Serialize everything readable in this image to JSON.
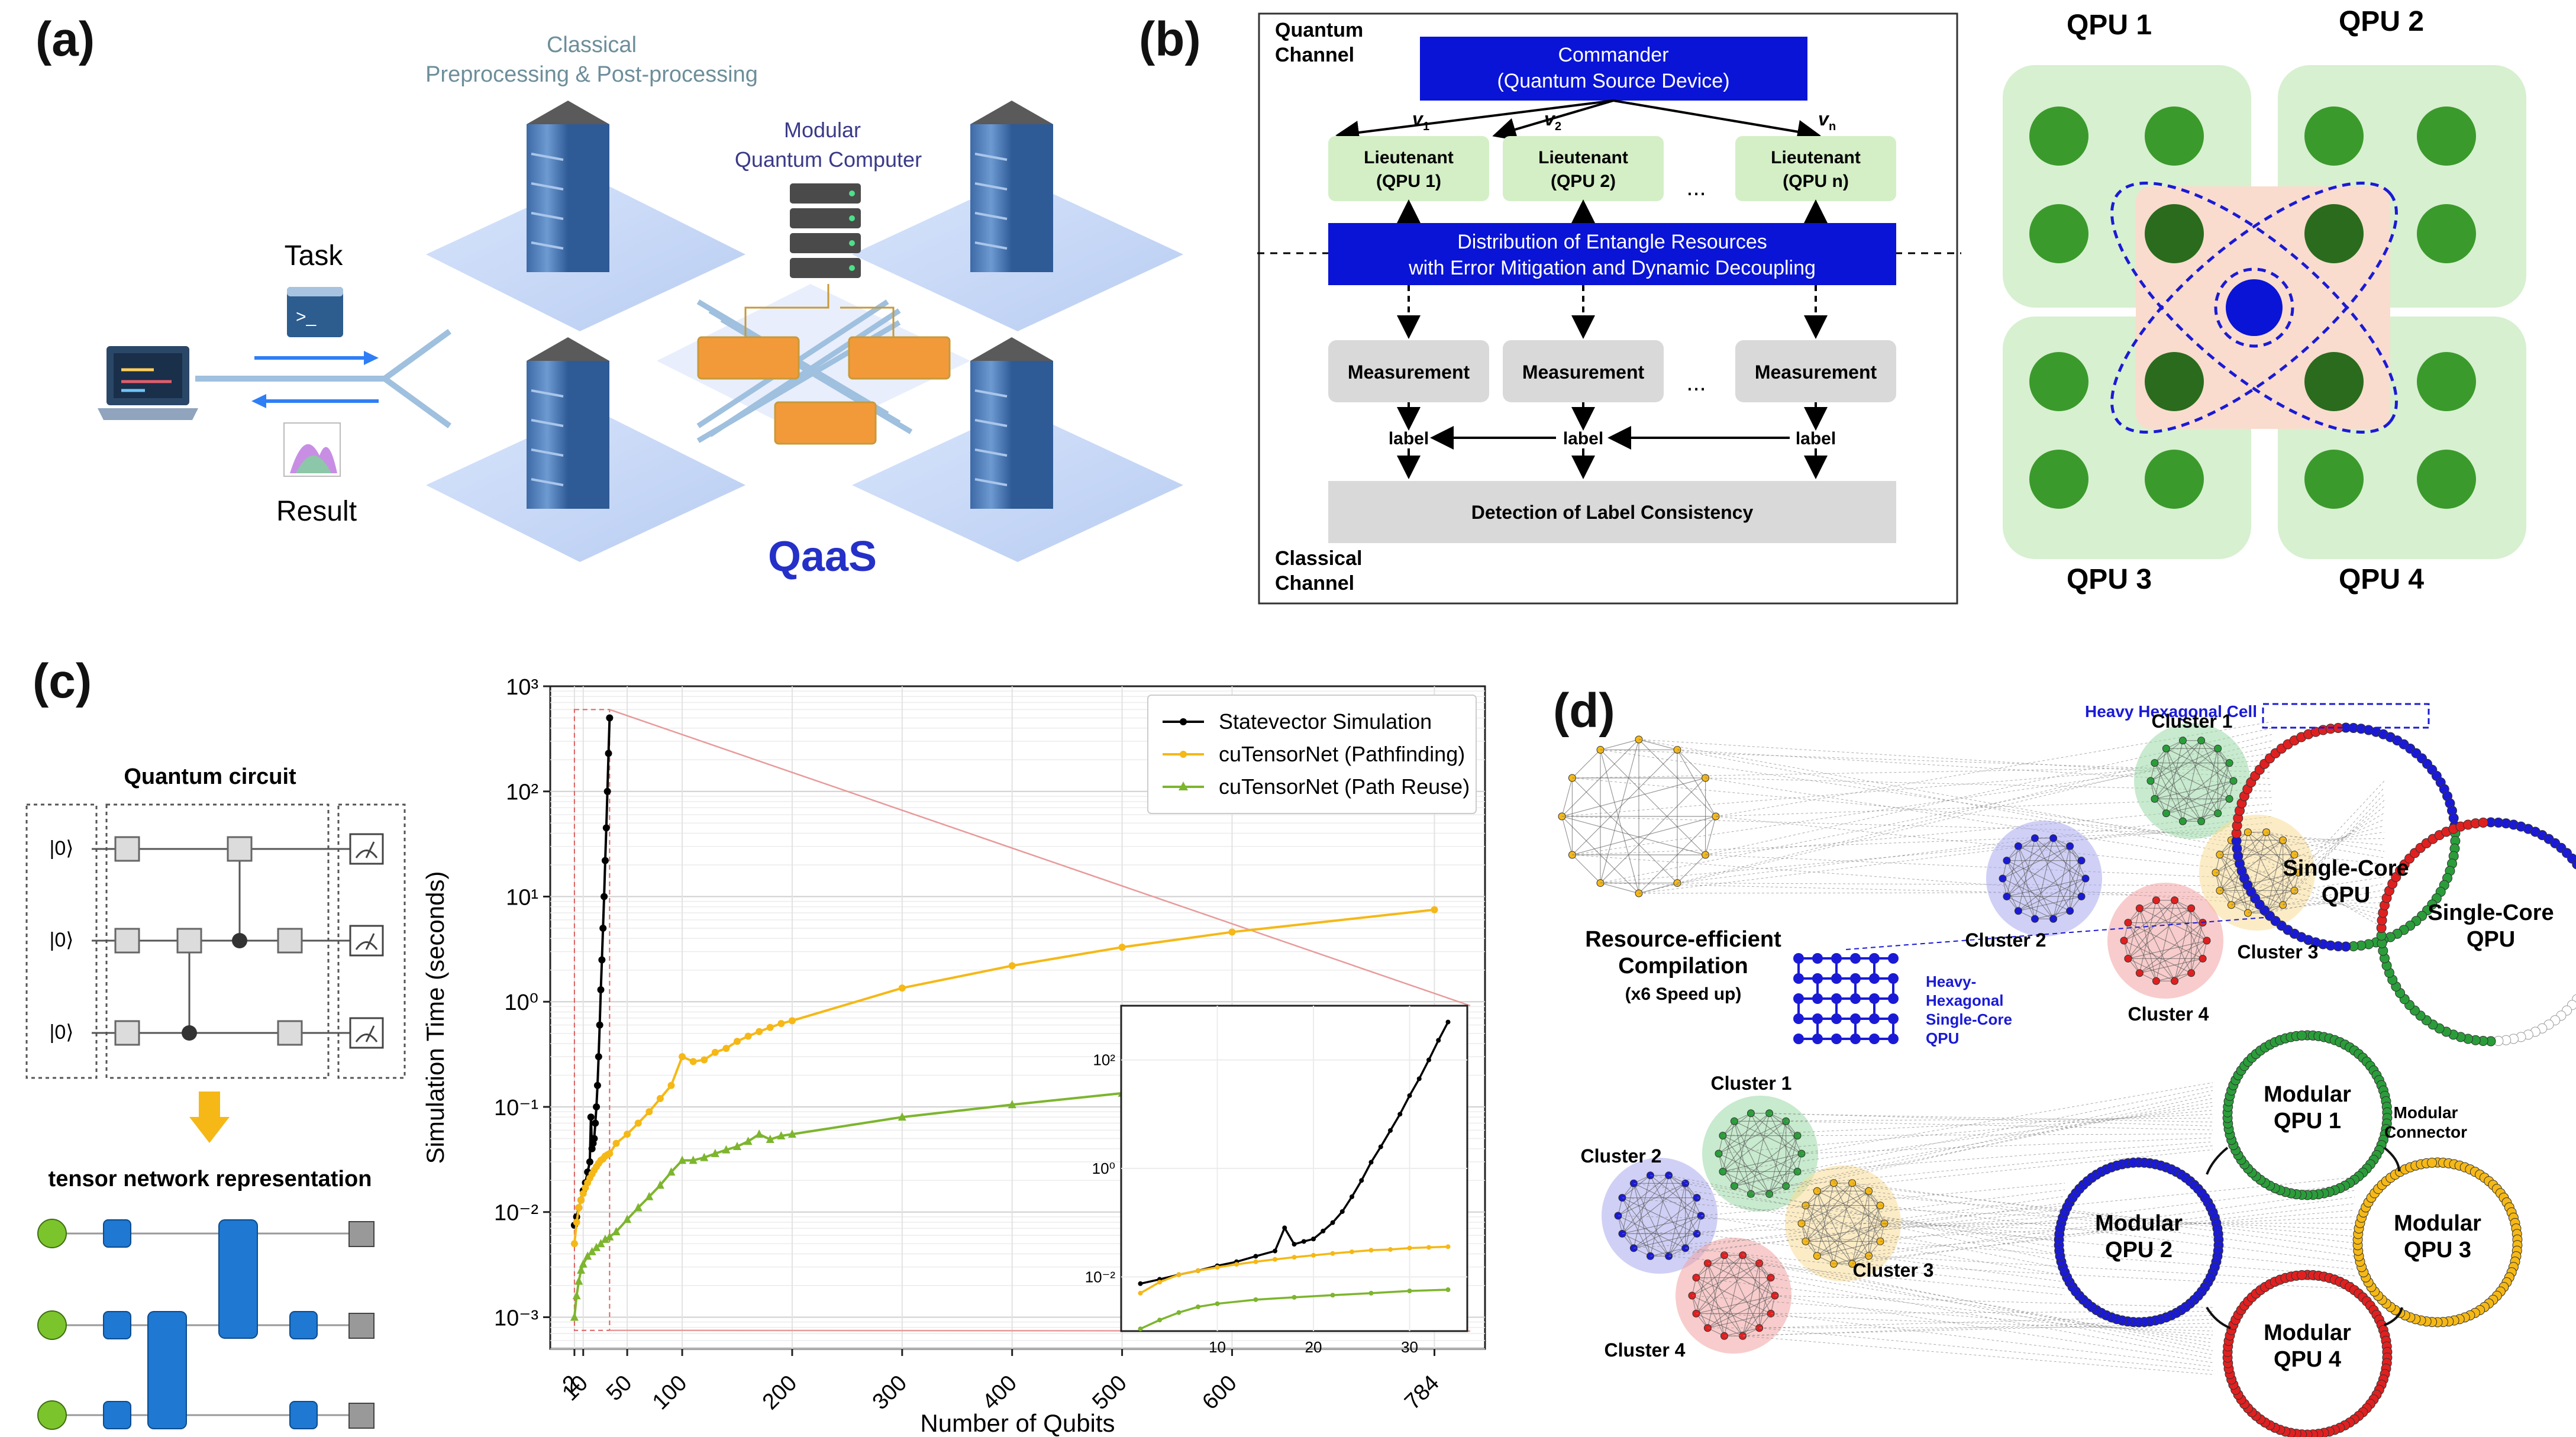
{
  "panels": {
    "a": "(a)",
    "b": "(b)",
    "c": "(c)",
    "d": "(d)"
  },
  "a": {
    "classical_line1": "Classical",
    "classical_line2": "Preprocessing & Post-processing",
    "modular_line1": "Modular",
    "modular_line2": "Quantum Computer",
    "task": "Task",
    "result": "Result",
    "qaas": "QaaS"
  },
  "b": {
    "quantum_channel_1": "Quantum",
    "quantum_channel_2": "Channel",
    "classical_channel_1": "Classical",
    "classical_channel_2": "Channel",
    "commander_1": "Commander",
    "commander_2": "(Quantum Source Device)",
    "v1": "v",
    "v1_sub": "1",
    "v2": "v",
    "v2_sub": "2",
    "vn": "v",
    "vn_sub": "n",
    "lieutenants": [
      {
        "line1": "Lieutenant",
        "line2": "(QPU 1)"
      },
      {
        "line1": "Lieutenant",
        "line2": "(QPU 2)"
      },
      {
        "line1": "Lieutenant",
        "line2": "(QPU n)"
      }
    ],
    "dots": "...",
    "distribution_1": "Distribution of Entangle Resources",
    "distribution_2": "with Error Mitigation and Dynamic Decoupling",
    "measurement": "Measurement",
    "label": "label",
    "detection": "Detection of Label Consistency",
    "qpu_labels": [
      "QPU 1",
      "QPU 2",
      "QPU 3",
      "QPU 4"
    ]
  },
  "c": {
    "circuit_title": "Quantum circuit",
    "ket0": "|0⟩",
    "tn_title": "tensor network representation",
    "chart_data": {
      "type": "line",
      "xlabel": "Number of Qubits",
      "ylabel": "Simulation Time (seconds)",
      "xticks": [
        "2",
        "10",
        "50",
        "100",
        "200",
        "300",
        "400",
        "500",
        "600",
        "784"
      ],
      "xtick_values": [
        2,
        10,
        50,
        100,
        200,
        300,
        400,
        500,
        600,
        784
      ],
      "yticks": [
        "10⁻³",
        "10⁻²",
        "10⁻¹",
        "10⁰",
        "10¹",
        "10²",
        "10³"
      ],
      "ylim": [
        0.0005,
        1000
      ],
      "yscale": "log",
      "grid": true,
      "legend_position": "top-right",
      "series": [
        {
          "name": "Statevector Simulation",
          "color": "#000000",
          "marker": "circle",
          "x": [
            2,
            4,
            6,
            8,
            10,
            12,
            14,
            16,
            17,
            18,
            19,
            20,
            21,
            22,
            23,
            24,
            25,
            26,
            27,
            28,
            29,
            30,
            31,
            32,
            33,
            34
          ],
          "y": [
            0.0075,
            0.009,
            0.011,
            0.013,
            0.016,
            0.019,
            0.024,
            0.03,
            0.08,
            0.04,
            0.045,
            0.05,
            0.07,
            0.1,
            0.16,
            0.3,
            0.6,
            1.3,
            2.5,
            5,
            10,
            22,
            45,
            100,
            230,
            500
          ]
        },
        {
          "name": "cuTensorNet (Pathfinding)",
          "color": "#f5b816",
          "marker": "circle",
          "x": [
            2,
            4,
            6,
            8,
            10,
            12,
            14,
            16,
            18,
            20,
            22,
            24,
            26,
            28,
            30,
            32,
            34,
            40,
            50,
            60,
            70,
            80,
            90,
            100,
            110,
            120,
            130,
            140,
            150,
            160,
            170,
            180,
            190,
            200,
            300,
            400,
            500,
            600,
            784
          ],
          "y": [
            0.005,
            0.008,
            0.011,
            0.013,
            0.015,
            0.017,
            0.019,
            0.021,
            0.023,
            0.025,
            0.027,
            0.029,
            0.031,
            0.032,
            0.034,
            0.035,
            0.036,
            0.045,
            0.055,
            0.07,
            0.09,
            0.12,
            0.16,
            0.3,
            0.27,
            0.28,
            0.33,
            0.36,
            0.42,
            0.47,
            0.52,
            0.57,
            0.62,
            0.66,
            1.35,
            2.2,
            3.3,
            4.6,
            7.5
          ]
        },
        {
          "name": "cuTensorNet (Path Reuse)",
          "color": "#7db52e",
          "marker": "triangle",
          "x": [
            2,
            4,
            6,
            8,
            10,
            14,
            18,
            22,
            26,
            30,
            34,
            40,
            50,
            60,
            70,
            80,
            90,
            100,
            110,
            120,
            130,
            140,
            150,
            160,
            170,
            180,
            190,
            200,
            300,
            400,
            500,
            600,
            784
          ],
          "y": [
            0.001,
            0.0016,
            0.0022,
            0.0028,
            0.0032,
            0.0038,
            0.0042,
            0.0046,
            0.005,
            0.0055,
            0.0058,
            0.0065,
            0.0085,
            0.011,
            0.014,
            0.018,
            0.024,
            0.031,
            0.031,
            0.033,
            0.036,
            0.039,
            0.042,
            0.047,
            0.055,
            0.049,
            0.053,
            0.055,
            0.08,
            0.105,
            0.135,
            0.155,
            0.2
          ]
        }
      ],
      "inset": {
        "xticks": [
          "10",
          "20",
          "30"
        ],
        "yticks": [
          "10⁻²",
          "10⁰",
          "10²"
        ]
      }
    }
  },
  "d": {
    "heavy_hex_cell": "Heavy Hexagonal Cell",
    "single_core_1": "Single-Core",
    "single_core_2": "QPU",
    "compilation_1": "Resource-efficient",
    "compilation_2": "Compilation",
    "compilation_3": "(x6 Speed up)",
    "hh_label_1": "Heavy-",
    "hh_label_2": "Hexagonal",
    "hh_label_3": "Single-Core",
    "hh_label_4": "QPU",
    "cluster1": "Cluster 1",
    "cluster2": "Cluster 2",
    "cluster3": "Cluster 3",
    "cluster4": "Cluster 4",
    "modular": "Modular",
    "qpu1": "QPU 1",
    "qpu2": "QPU 2",
    "qpu3": "QPU 3",
    "qpu4": "QPU 4",
    "connector_1": "Modular",
    "connector_2": "Connector"
  }
}
